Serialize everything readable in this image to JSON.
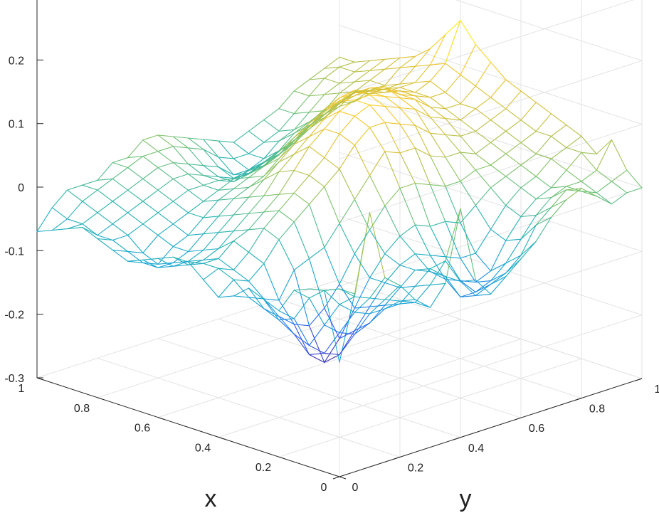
{
  "chart_data": {
    "type": "surface-mesh",
    "xlabel": "x",
    "ylabel": "y",
    "zlabel": "",
    "xlim": [
      0,
      1
    ],
    "ylim": [
      0,
      1
    ],
    "zlim": [
      -0.3,
      0.3
    ],
    "xticks": [
      "0",
      "0.2",
      "0.4",
      "0.6",
      "0.8",
      "1"
    ],
    "yticks": [
      "0",
      "0.2",
      "0.4",
      "0.6",
      "0.8",
      "1"
    ],
    "zticks": [
      "0.2",
      "0.1",
      "0",
      "-0.1",
      "-0.2",
      "-0.3"
    ],
    "grid": true,
    "colormap": [
      "#3e26a8",
      "#2f5ff5",
      "#15a3d8",
      "#2ab4b0",
      "#7fc46b",
      "#cfbf3a",
      "#f9c829",
      "#f9fb0e"
    ],
    "grid_size": 21,
    "z": [
      [
        -0.12,
        -0.015,
        -0.02,
        -0.03,
        -0.07,
        -0.06,
        -0.05,
        -0.07,
        -0.08,
        -0.06,
        -0.04,
        -0.04,
        -0.05,
        -0.06,
        -0.07,
        -0.06,
        -0.05,
        -0.04,
        -0.05,
        -0.06,
        -0.07
      ],
      [
        -0.02,
        -0.02,
        -0.03,
        -0.05,
        -0.09,
        -0.1,
        -0.09,
        -0.08,
        -0.06,
        -0.05,
        -0.05,
        -0.06,
        -0.07,
        -0.08,
        -0.08,
        -0.07,
        -0.06,
        -0.06,
        -0.05,
        -0.05,
        -0.04
      ],
      [
        0.1,
        -0.04,
        -0.06,
        -0.1,
        -0.14,
        -0.13,
        -0.11,
        -0.09,
        -0.07,
        -0.06,
        -0.05,
        -0.06,
        -0.07,
        -0.08,
        -0.09,
        -0.08,
        -0.06,
        -0.05,
        -0.04,
        -0.03,
        -0.02
      ],
      [
        -0.01,
        -0.05,
        -0.08,
        -0.12,
        -0.16,
        -0.17,
        -0.13,
        -0.1,
        -0.05,
        -0.04,
        -0.03,
        -0.05,
        -0.06,
        -0.07,
        -0.07,
        -0.06,
        -0.05,
        -0.04,
        -0.03,
        -0.02,
        -0.02
      ],
      [
        -0.03,
        -0.06,
        -0.09,
        -0.13,
        -0.17,
        -0.19,
        -0.14,
        -0.06,
        -0.02,
        -0.01,
        -0.02,
        -0.03,
        -0.04,
        -0.05,
        -0.06,
        -0.05,
        -0.04,
        -0.03,
        -0.02,
        -0.01,
        -0.02
      ],
      [
        -0.06,
        -0.07,
        -0.09,
        -0.12,
        -0.14,
        -0.16,
        -0.12,
        -0.05,
        0.0,
        0.01,
        0.0,
        -0.01,
        -0.02,
        -0.03,
        -0.04,
        -0.04,
        -0.03,
        -0.02,
        -0.01,
        0.0,
        0.0
      ],
      [
        -0.08,
        -0.08,
        -0.09,
        -0.1,
        -0.11,
        -0.12,
        -0.09,
        -0.04,
        0.02,
        0.03,
        0.02,
        0.01,
        0.0,
        -0.01,
        -0.02,
        -0.03,
        -0.02,
        -0.01,
        0.0,
        0.01,
        0.0
      ],
      [
        -0.05,
        -0.06,
        -0.07,
        -0.08,
        -0.08,
        -0.08,
        -0.05,
        -0.01,
        0.04,
        0.05,
        0.05,
        0.04,
        0.02,
        0.0,
        -0.01,
        -0.02,
        -0.02,
        -0.01,
        0.0,
        0.01,
        0.02
      ],
      [
        0.06,
        -0.03,
        -0.05,
        -0.06,
        -0.06,
        -0.05,
        -0.02,
        0.02,
        0.06,
        0.07,
        0.08,
        0.06,
        0.04,
        0.01,
        0.0,
        -0.01,
        -0.02,
        -0.02,
        -0.01,
        0.01,
        0.02
      ],
      [
        -0.06,
        -0.07,
        -0.07,
        -0.07,
        -0.05,
        -0.03,
        0.01,
        0.05,
        0.09,
        0.1,
        0.1,
        0.08,
        0.06,
        0.03,
        0.01,
        -0.01,
        -0.03,
        -0.03,
        -0.02,
        0.0,
        0.01
      ],
      [
        -0.09,
        -0.1,
        -0.11,
        -0.09,
        -0.06,
        -0.02,
        0.03,
        0.08,
        0.11,
        0.12,
        0.12,
        0.1,
        0.08,
        0.05,
        0.02,
        0.0,
        -0.02,
        -0.04,
        -0.03,
        -0.01,
        0.0
      ],
      [
        -0.07,
        -0.09,
        -0.11,
        -0.1,
        -0.07,
        -0.03,
        0.03,
        0.07,
        0.11,
        0.13,
        0.13,
        0.12,
        0.1,
        0.07,
        0.04,
        0.01,
        -0.02,
        -0.04,
        -0.05,
        -0.03,
        -0.01
      ],
      [
        -0.05,
        -0.08,
        -0.1,
        -0.11,
        -0.08,
        -0.03,
        0.02,
        0.07,
        0.1,
        0.12,
        0.13,
        0.13,
        0.11,
        0.08,
        0.05,
        0.02,
        -0.01,
        -0.03,
        -0.05,
        -0.04,
        -0.02
      ],
      [
        -0.03,
        -0.06,
        -0.08,
        -0.1,
        -0.08,
        -0.04,
        0.01,
        0.05,
        0.09,
        0.11,
        0.12,
        0.12,
        0.11,
        0.09,
        0.06,
        0.03,
        0.0,
        -0.02,
        -0.04,
        -0.04,
        -0.03
      ],
      [
        0.0,
        -0.02,
        -0.05,
        -0.06,
        -0.05,
        -0.02,
        0.01,
        0.04,
        0.07,
        0.1,
        0.11,
        0.12,
        0.11,
        0.09,
        0.07,
        0.04,
        0.02,
        0.0,
        -0.02,
        -0.03,
        -0.02
      ],
      [
        0.02,
        0.0,
        -0.02,
        -0.03,
        -0.02,
        0.0,
        0.02,
        0.04,
        0.06,
        0.08,
        0.1,
        0.1,
        0.1,
        0.09,
        0.08,
        0.05,
        0.03,
        0.01,
        -0.01,
        -0.02,
        -0.01
      ],
      [
        0.03,
        0.02,
        0.0,
        -0.01,
        0.0,
        0.01,
        0.02,
        0.03,
        0.05,
        0.07,
        0.08,
        0.09,
        0.09,
        0.08,
        0.07,
        0.05,
        0.04,
        0.02,
        0.01,
        0.0,
        0.0
      ],
      [
        0.01,
        0.01,
        0.01,
        0.0,
        0.01,
        0.02,
        0.03,
        0.04,
        0.05,
        0.06,
        0.07,
        0.08,
        0.08,
        0.08,
        0.07,
        0.06,
        0.05,
        0.04,
        0.03,
        0.02,
        0.02
      ],
      [
        -0.01,
        0.0,
        0.01,
        0.02,
        0.03,
        0.03,
        0.04,
        0.05,
        0.06,
        0.07,
        0.07,
        0.08,
        0.09,
        0.08,
        0.07,
        0.06,
        0.06,
        0.05,
        0.04,
        0.04,
        0.03
      ],
      [
        0.0,
        0.01,
        0.02,
        0.04,
        0.04,
        0.05,
        0.05,
        0.06,
        0.07,
        0.08,
        0.09,
        0.1,
        0.11,
        0.1,
        0.09,
        0.08,
        0.07,
        0.06,
        0.05,
        0.05,
        0.04
      ],
      [
        0.0,
        0.02,
        0.06,
        0.03,
        0.05,
        0.06,
        0.07,
        0.08,
        0.09,
        0.1,
        0.12,
        0.14,
        0.17,
        0.14,
        0.11,
        0.09,
        0.08,
        0.07,
        0.06,
        0.05,
        0.05
      ]
    ]
  }
}
